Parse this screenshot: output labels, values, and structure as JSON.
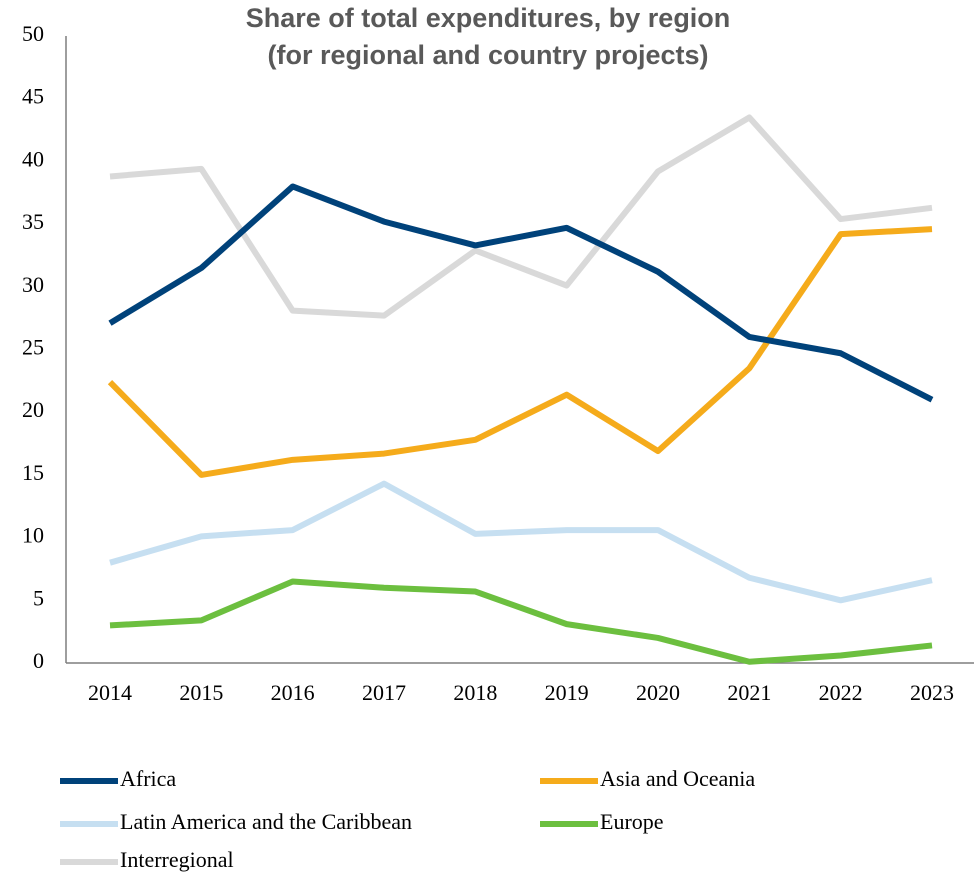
{
  "chart_data": {
    "type": "line",
    "title": "Share of total expenditures, by region",
    "subtitle": "(for regional and country projects)",
    "categories": [
      "2014",
      "2015",
      "2016",
      "2017",
      "2018",
      "2019",
      "2020",
      "2021",
      "2022",
      "2023"
    ],
    "series": [
      {
        "name": "Africa",
        "color": "#00427a",
        "values": [
          27.1,
          31.5,
          38.0,
          35.2,
          33.3,
          34.7,
          31.2,
          26.0,
          24.7,
          21.0
        ]
      },
      {
        "name": "Asia and Oceania",
        "color": "#f5ab1b",
        "values": [
          22.4,
          15.0,
          16.2,
          16.7,
          17.8,
          21.4,
          16.9,
          23.5,
          34.2,
          34.6
        ]
      },
      {
        "name": "Latin America and the Caribbean",
        "color": "#c6dff1",
        "values": [
          8.0,
          10.1,
          10.6,
          14.3,
          10.3,
          10.6,
          10.6,
          6.8,
          5.0,
          6.6
        ]
      },
      {
        "name": "Europe",
        "color": "#6cbf3f",
        "values": [
          3.0,
          3.4,
          6.5,
          6.0,
          5.7,
          3.1,
          2.0,
          0.1,
          0.6,
          1.4
        ]
      },
      {
        "name": "Interregional",
        "color": "#d9d9d9",
        "values": [
          38.8,
          39.4,
          28.1,
          27.7,
          32.9,
          30.1,
          39.2,
          43.5,
          35.4,
          36.3
        ]
      }
    ],
    "ylim": [
      0,
      50
    ],
    "yticks": [
      0,
      5,
      10,
      15,
      20,
      25,
      30,
      35,
      40,
      45,
      50
    ],
    "grid": false
  }
}
